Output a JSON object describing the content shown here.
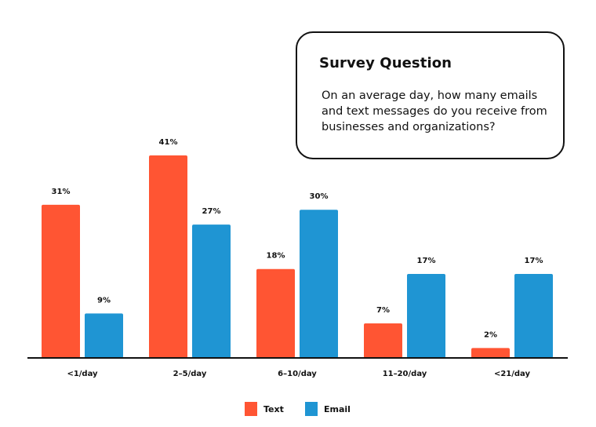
{
  "callout": {
    "title": "Survey Question",
    "body": "On an average day, how many emails and text messages do you receive from businesses and organizations?"
  },
  "colors": {
    "text_series": "#ff5533",
    "email_series": "#1f95d3",
    "axis": "#111111"
  },
  "chart_data": {
    "type": "bar",
    "categories": [
      "<1/day",
      "2–5/day",
      "6–10/day",
      "11–20/day",
      "<21/day"
    ],
    "series": [
      {
        "name": "Text",
        "values": [
          31,
          41,
          18,
          7,
          2
        ]
      },
      {
        "name": "Email",
        "values": [
          9,
          27,
          30,
          17,
          17
        ]
      }
    ],
    "value_suffix": "%",
    "ylim": [
      0,
      41
    ],
    "title": "",
    "xlabel": "",
    "ylabel": "",
    "legend": "bottom-center",
    "grid": false
  }
}
